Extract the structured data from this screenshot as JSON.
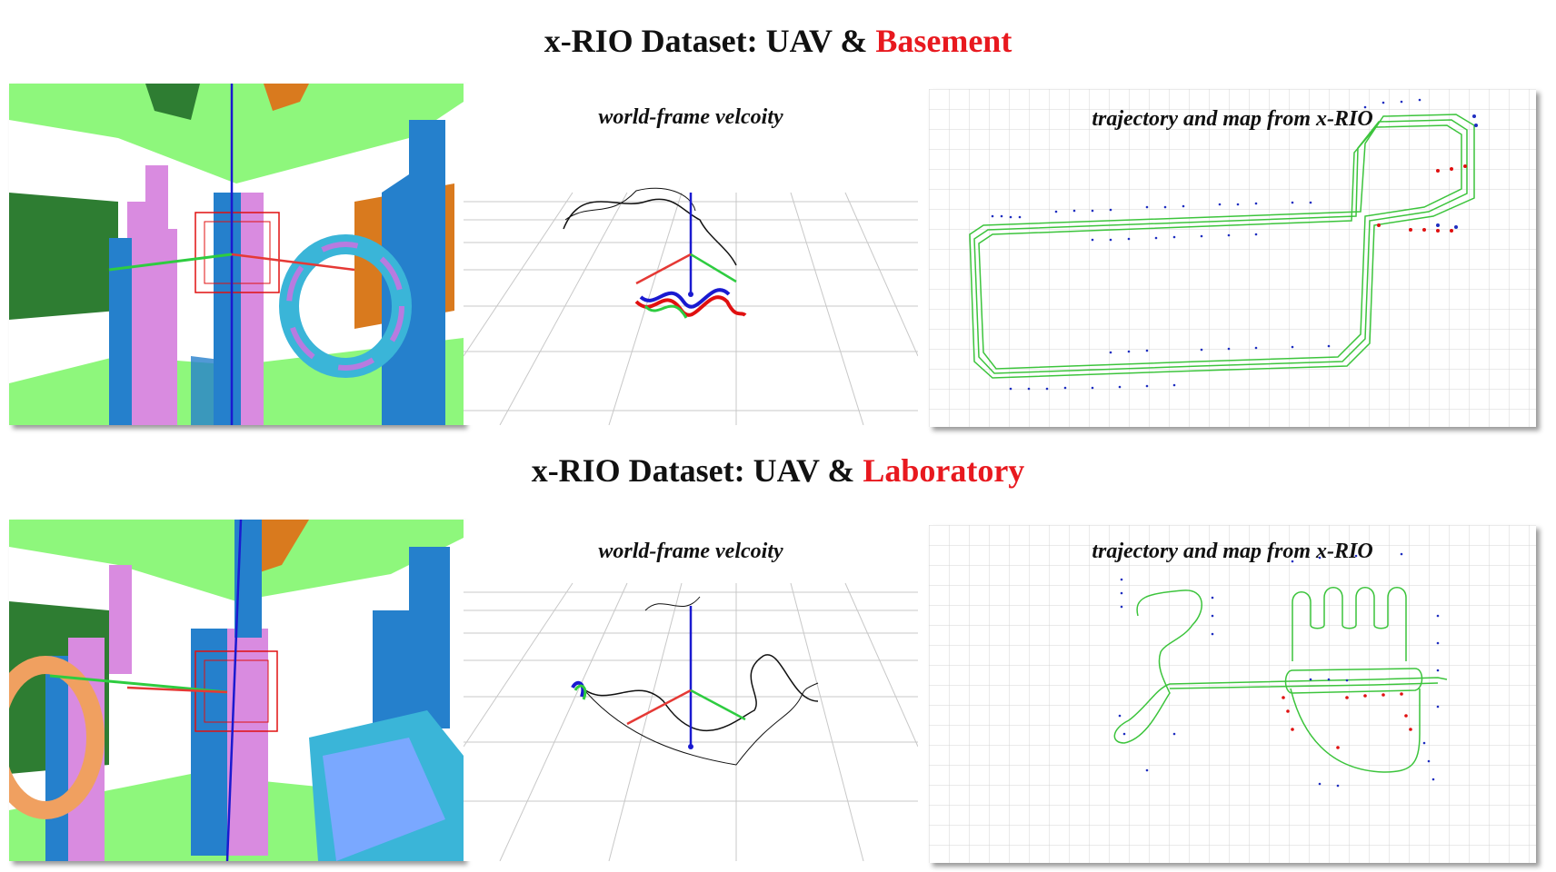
{
  "sections": [
    {
      "title_prefix": "x-RIO Dataset: UAV & ",
      "title_highlight": "Basement",
      "velocity_caption": "world-frame velcoity",
      "map_caption": "trajectory and map from x-RIO"
    },
    {
      "title_prefix": "x-RIO Dataset: UAV & ",
      "title_highlight": "Laboratory",
      "velocity_caption": "world-frame velcoity",
      "map_caption": "trajectory and map from x-RIO"
    }
  ],
  "colors": {
    "highlight": "#e8191f",
    "ground_green": "#8ef77c",
    "wall_green": "#2e7d32",
    "pillar_blue": "#2580cc",
    "pillar_pink": "#d98be0",
    "wall_orange": "#d97a1e",
    "trajectory_green": "#3cc43c",
    "map_points_blue": "#1f2ec0",
    "map_points_red": "#e01010",
    "axis_x": "#e53935",
    "axis_y": "#2ecc40",
    "axis_z": "#1a1ad0"
  }
}
